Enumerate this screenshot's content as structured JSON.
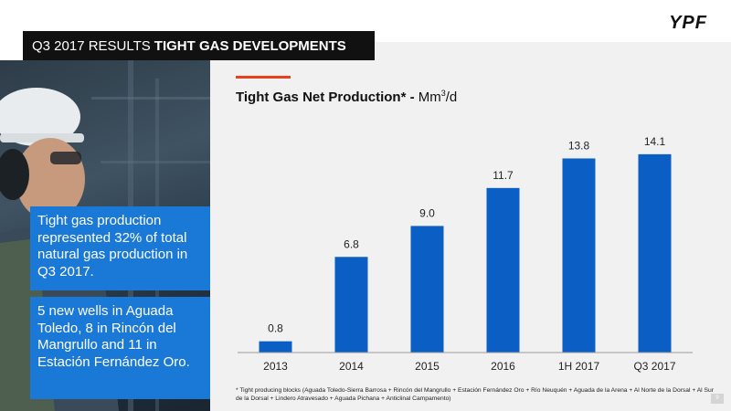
{
  "header": {
    "title_regular": "Q3 2017 RESULTS",
    "title_bold": "TIGHT GAS DEVELOPMENTS",
    "logo": "YPF"
  },
  "callouts": [
    "Tight gas production represented 32% of total natural gas production in Q3 2017.",
    "5 new wells in Aguada Toledo, 8 in Rincón del Mangrullo and 11 in Estación Fernández Oro."
  ],
  "chart_title": {
    "bold": "Tight Gas Net Production* -",
    "unit_base": "Mm",
    "unit_sup": "3",
    "unit_tail": "/d"
  },
  "chart_data": {
    "type": "bar",
    "categories": [
      "2013",
      "2014",
      "2015",
      "2016",
      "1H 2017",
      "Q3 2017"
    ],
    "values": [
      0.8,
      6.8,
      9.0,
      11.7,
      13.8,
      14.1
    ],
    "value_labels": [
      "0.8",
      "6.8",
      "9.0",
      "11.7",
      "13.8",
      "14.1"
    ],
    "title": "Tight Gas Net Production* - Mm3/d",
    "xlabel": "",
    "ylabel": "",
    "ylim": [
      0,
      15
    ],
    "grid": false,
    "colors": {
      "bar": "#0b5fc4",
      "text": "#222222"
    }
  },
  "footnote": "* Tight producing blocks (Aguada Toledo-Sierra Barrosa + Rincón del Mangrullo + Estación Fernández Oro + Río Neuquén + Aguada de la Arena + Al Norte de la Dorsal + Al Sur de la Dorsal + Lindero Atravesado + Aguada Pichana + Anticlinal Campamento)",
  "page_number": "9"
}
